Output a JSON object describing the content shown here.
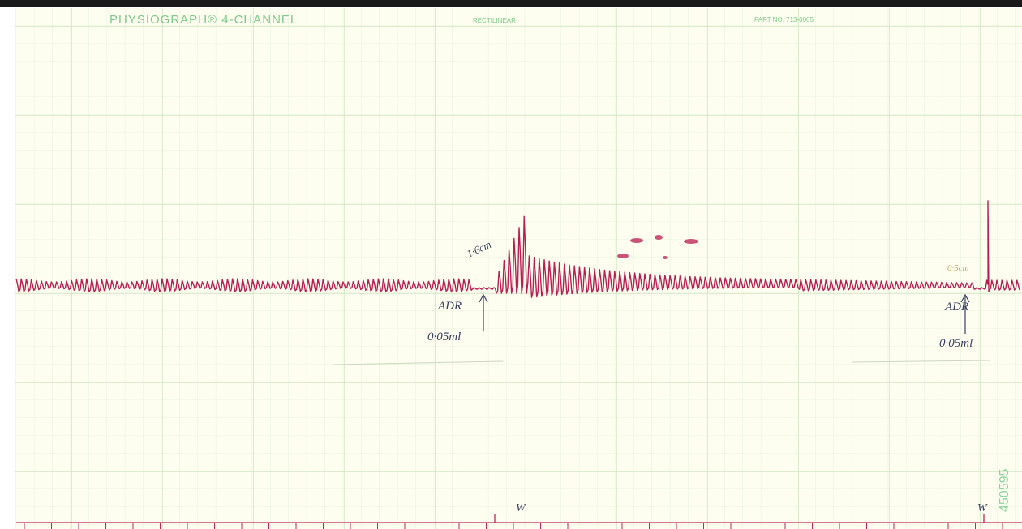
{
  "header": {
    "title": "PHYSIOGRAPH® 4-CHANNEL",
    "paper": "RECTILINEAR",
    "part_no": "PART NO. 713-0005"
  },
  "annotations": [
    "1·6cm",
    "ADR",
    "0·05ml",
    "0·5cm",
    "ADR",
    "0·05ml",
    "W",
    "W"
  ],
  "serial": "450595"
}
